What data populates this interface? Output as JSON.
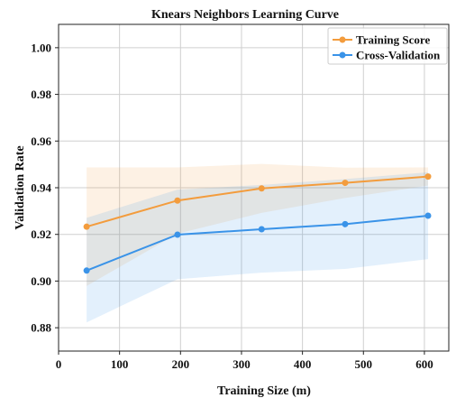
{
  "chart_data": {
    "type": "line",
    "title": "Knears Neighbors Learning Curve",
    "xlabel": "Training Size (m)",
    "ylabel": "Validation Rate",
    "xlim": [
      0,
      640
    ],
    "ylim": [
      0.87,
      1.01
    ],
    "xticks": [
      0,
      100,
      200,
      300,
      400,
      500,
      600
    ],
    "yticks": [
      0.88,
      0.9,
      0.92,
      0.94,
      0.96,
      0.98,
      1.0
    ],
    "x_tick_labels": [
      "0",
      "100",
      "200",
      "300",
      "400",
      "500",
      "600"
    ],
    "y_tick_labels": [
      "0.88",
      "0.90",
      "0.92",
      "0.94",
      "0.96",
      "0.98",
      "1.00"
    ],
    "grid": true,
    "legend_position": "top-right",
    "x": [
      46,
      195,
      333,
      470,
      606
    ],
    "series": [
      {
        "name": "Training Score",
        "color": "#f39c3d",
        "values": [
          0.9233,
          0.9345,
          0.9397,
          0.9421,
          0.9448
        ],
        "band_upper": [
          0.9487,
          0.9487,
          0.9502,
          0.9486,
          0.9487
        ],
        "band_lower": [
          0.8979,
          0.9203,
          0.9292,
          0.9356,
          0.9409
        ]
      },
      {
        "name": "Cross-Validation",
        "color": "#3a93e8",
        "values": [
          0.9045,
          0.9199,
          0.9222,
          0.9244,
          0.928
        ],
        "band_upper": [
          0.9271,
          0.9392,
          0.9412,
          0.9437,
          0.9466
        ],
        "band_lower": [
          0.8823,
          0.9008,
          0.9036,
          0.9052,
          0.9094
        ]
      }
    ]
  }
}
